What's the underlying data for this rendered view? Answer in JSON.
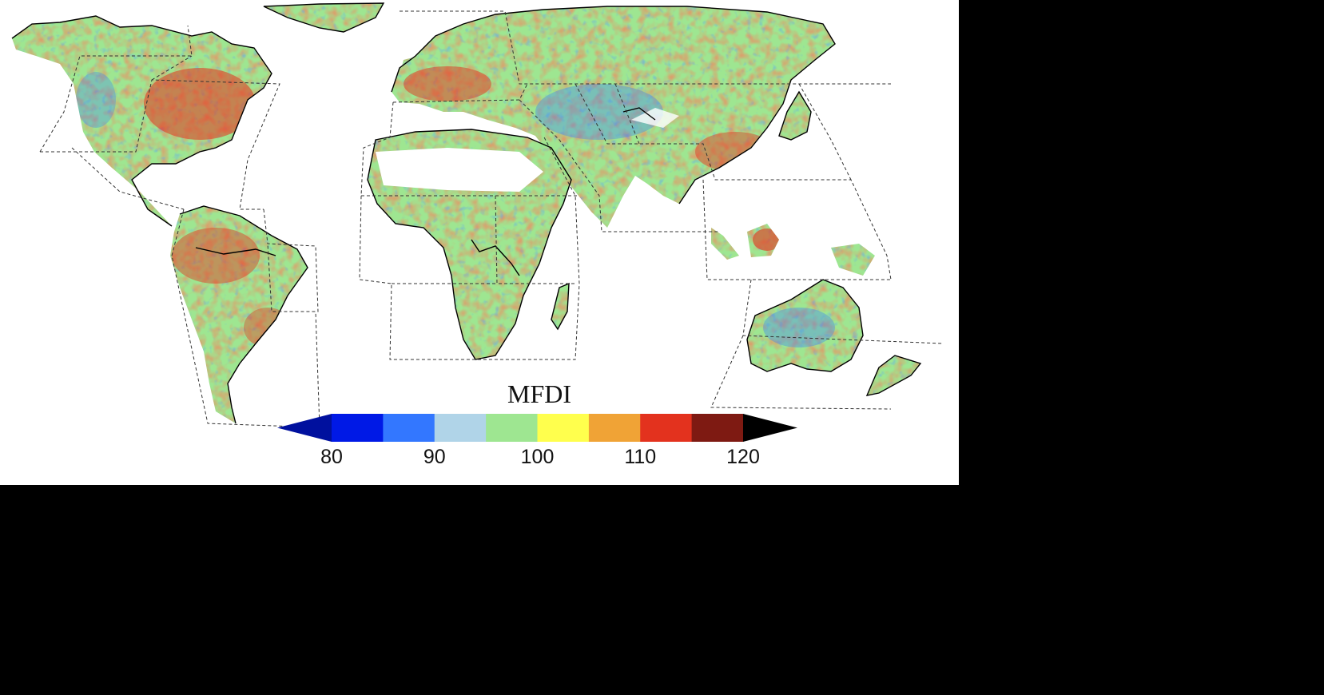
{
  "map": {
    "colorbar": {
      "title": "MFDI",
      "ticks": [
        {
          "value": 80,
          "label": "80"
        },
        {
          "value": 90,
          "label": "90"
        },
        {
          "value": 100,
          "label": "100"
        },
        {
          "value": 110,
          "label": "110"
        },
        {
          "value": 120,
          "label": "120"
        }
      ],
      "bins": [
        {
          "from": 80,
          "to": 85,
          "color": "#0019e6"
        },
        {
          "from": 85,
          "to": 90,
          "color": "#3377ff"
        },
        {
          "from": 90,
          "to": 95,
          "color": "#b0d4e8"
        },
        {
          "from": 95,
          "to": 100,
          "color": "#9ee691"
        },
        {
          "from": 100,
          "to": 105,
          "color": "#ffff4d"
        },
        {
          "from": 105,
          "to": 110,
          "color": "#f0a336"
        },
        {
          "from": 110,
          "to": 115,
          "color": "#e3321e"
        },
        {
          "from": 115,
          "to": 120,
          "color": "#7e1a12"
        }
      ],
      "under_color": "#00109e",
      "over_color": "#000000",
      "range": [
        80,
        120
      ]
    },
    "background_color": "#ffffff",
    "coastline_color": "#000000",
    "region_boundary_style": "dashed"
  }
}
